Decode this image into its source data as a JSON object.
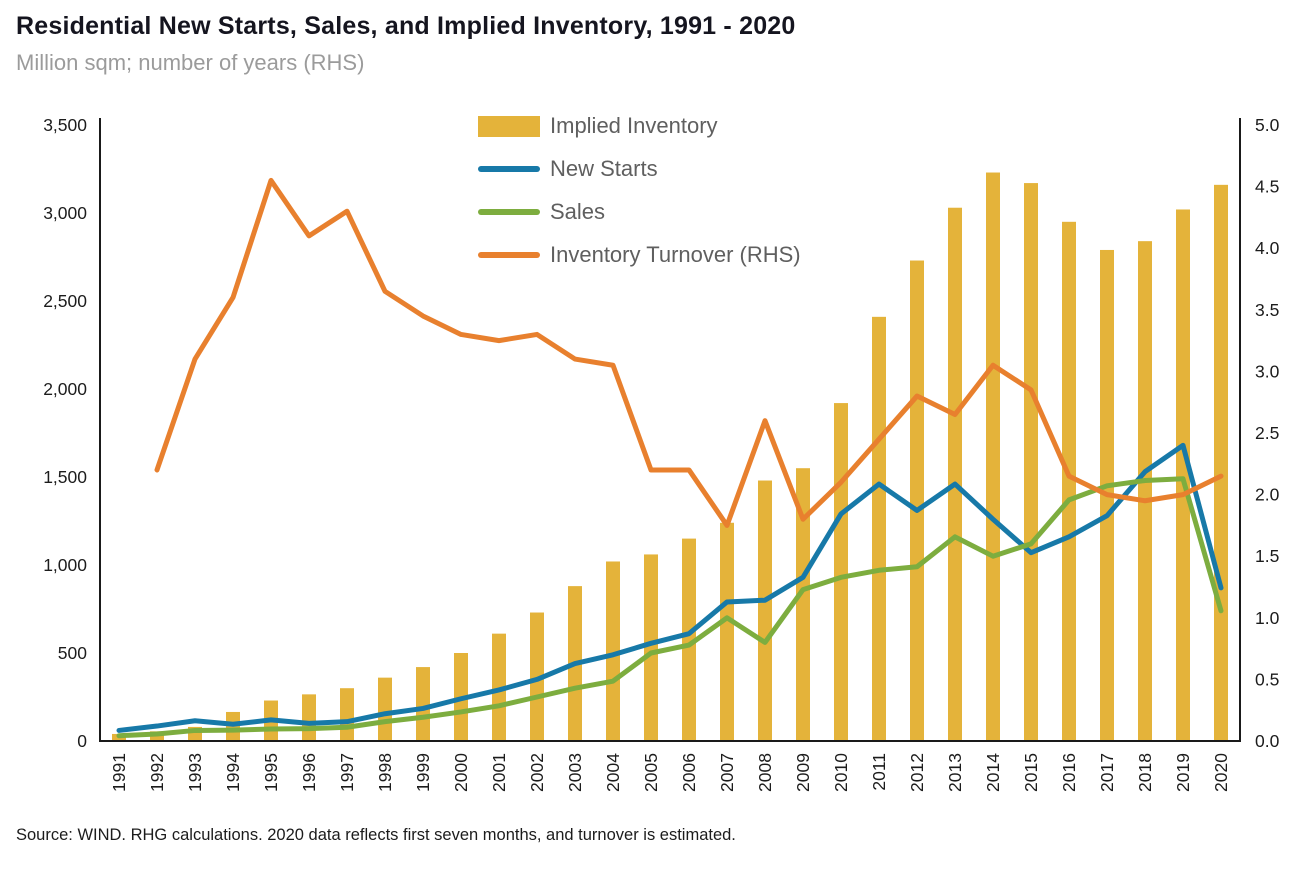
{
  "header": {
    "title": "Residential New Starts, Sales, and Implied Inventory, 1991 - 2020",
    "subtitle": "Million sqm; number of years (RHS)"
  },
  "footer": {
    "source": "Source: WIND. RHG calculations. 2020 data reflects first seven months, and turnover is estimated."
  },
  "chart_data": {
    "type": "combo",
    "title": "Residential New Starts, Sales, and Implied Inventory, 1991 - 2020",
    "subtitle": "Million sqm; number of years (RHS)",
    "categories": [
      1991,
      1992,
      1993,
      1994,
      1995,
      1996,
      1997,
      1998,
      1999,
      2000,
      2001,
      2002,
      2003,
      2004,
      2005,
      2006,
      2007,
      2008,
      2009,
      2010,
      2011,
      2012,
      2013,
      2014,
      2015,
      2016,
      2017,
      2018,
      2019,
      2020
    ],
    "series": [
      {
        "name": "Implied Inventory",
        "type": "bar",
        "axis": "left",
        "color": "#E4B33A",
        "values": [
          40,
          55,
          80,
          165,
          230,
          265,
          300,
          360,
          420,
          500,
          610,
          730,
          880,
          1020,
          1060,
          1150,
          1240,
          1480,
          1550,
          1920,
          2410,
          2730,
          3030,
          3230,
          3170,
          2950,
          2790,
          2840,
          3020,
          3160
        ]
      },
      {
        "name": "New Starts",
        "type": "line",
        "axis": "left",
        "color": "#1779A8",
        "values": [
          60,
          85,
          115,
          95,
          120,
          100,
          110,
          155,
          185,
          240,
          290,
          350,
          440,
          490,
          555,
          610,
          790,
          800,
          930,
          1290,
          1460,
          1310,
          1460,
          1260,
          1070,
          1160,
          1280,
          1530,
          1680,
          870
        ]
      },
      {
        "name": "Sales",
        "type": "line",
        "axis": "left",
        "color": "#7DAD3F",
        "values": [
          30,
          40,
          60,
          62,
          68,
          70,
          78,
          110,
          135,
          165,
          200,
          250,
          300,
          340,
          500,
          545,
          700,
          560,
          860,
          930,
          970,
          990,
          1160,
          1050,
          1120,
          1370,
          1450,
          1480,
          1490,
          740
        ]
      },
      {
        "name": "Inventory Turnover (RHS)",
        "type": "line",
        "axis": "right",
        "color": "#E8802E",
        "values": [
          null,
          2.2,
          3.1,
          3.6,
          4.55,
          4.1,
          4.3,
          3.65,
          3.45,
          3.3,
          3.25,
          3.3,
          3.1,
          3.05,
          2.2,
          2.2,
          1.75,
          2.6,
          1.8,
          2.1,
          2.45,
          2.8,
          2.65,
          3.05,
          2.85,
          2.15,
          2.0,
          1.95,
          2.0,
          2.15
        ]
      }
    ],
    "left_axis": {
      "min": 0,
      "max": 3500,
      "step": 500,
      "format": "thousands"
    },
    "right_axis": {
      "min": 0,
      "max": 5,
      "step": 0.5,
      "format": "one_decimal"
    },
    "grid": false,
    "legend_position": "top-center",
    "axis_color": "#1a1a1a"
  }
}
